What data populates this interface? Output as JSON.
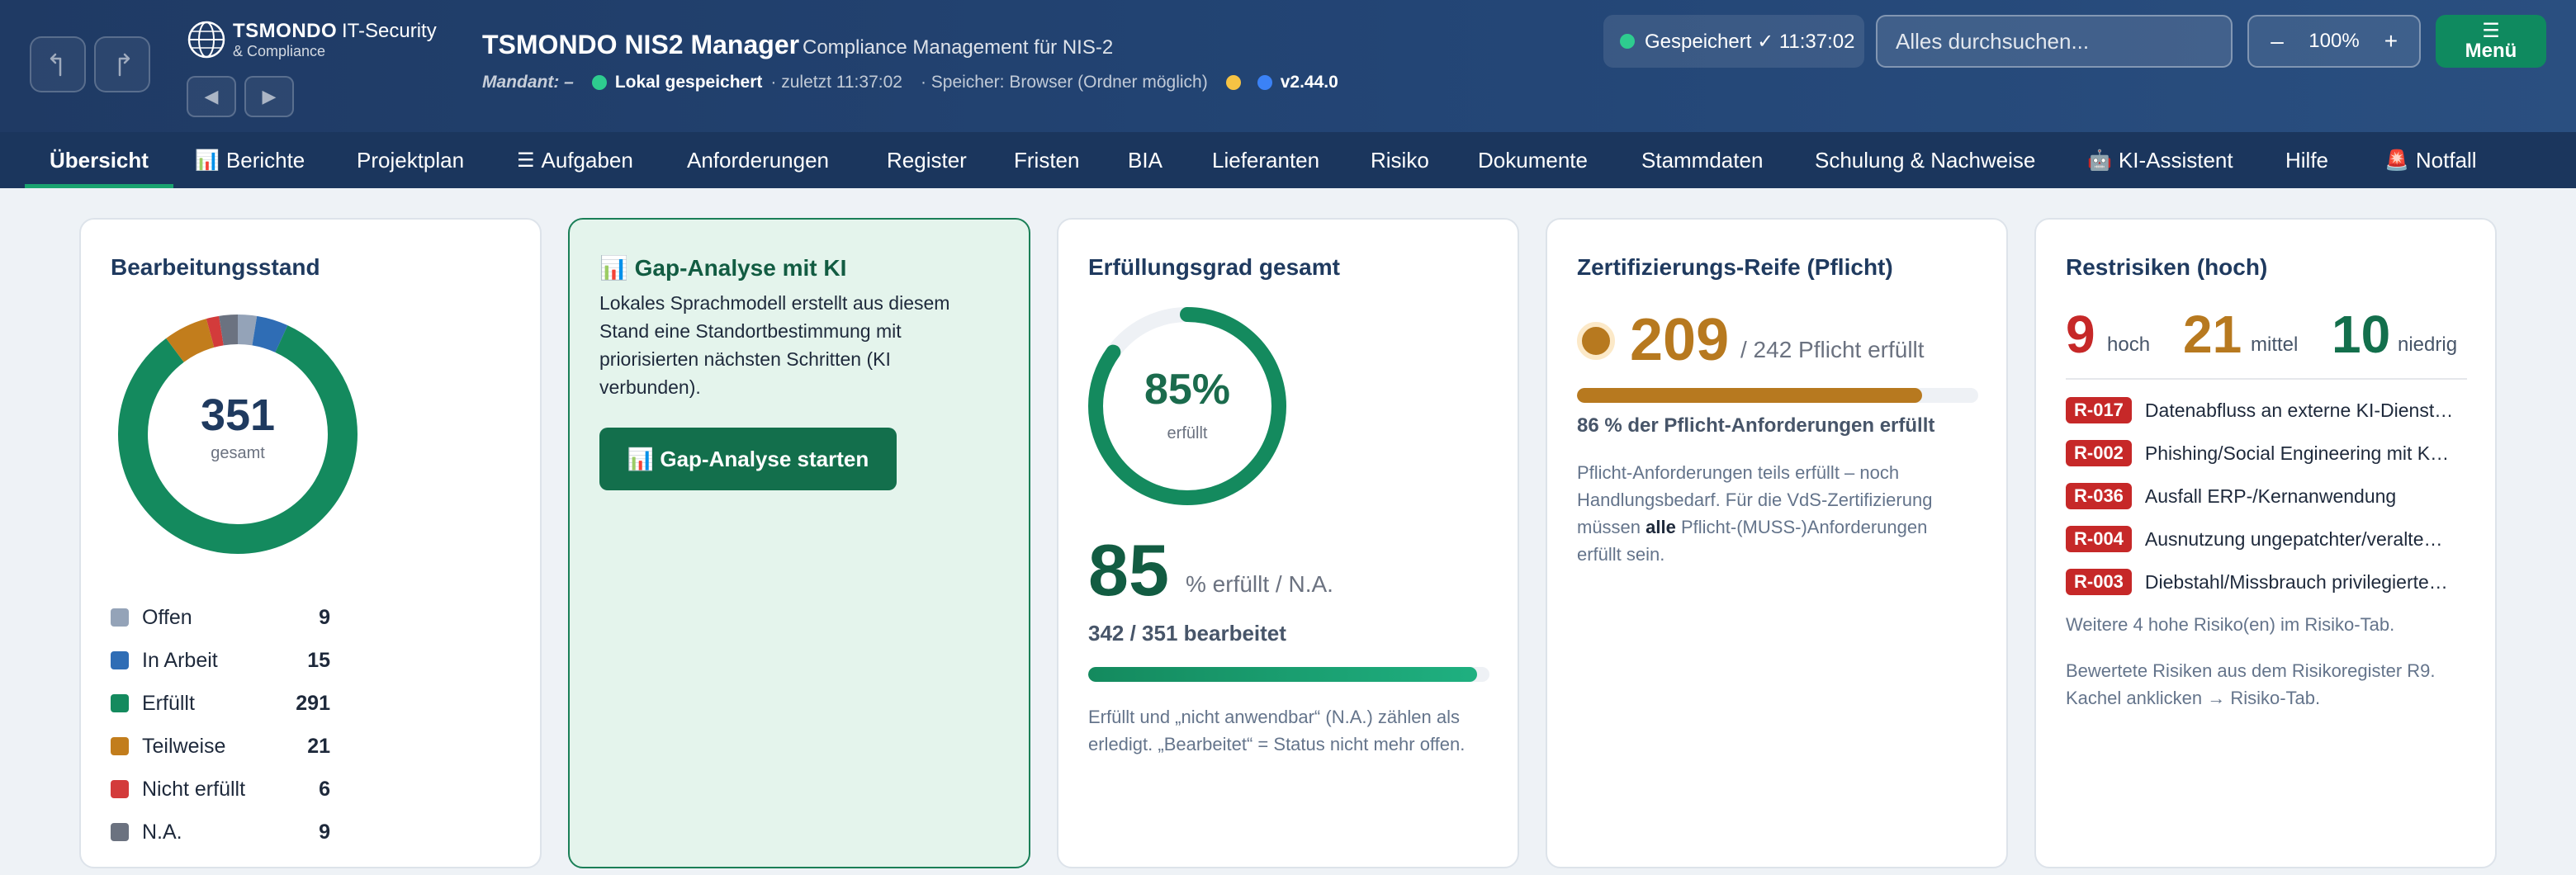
{
  "header": {
    "brand_name": "TSMONDO",
    "brand_suffix": "IT-Security",
    "brand_tagline": "& Compliance",
    "app_title": "TSMONDO NIS2 Manager",
    "app_subtitle": "Compliance Management für NIS-2",
    "mandant": "Mandant: –",
    "local_saved": "Lokal gespeichert",
    "last_saved": "· zuletzt 11:37:02",
    "storage": "· Speicher: Browser (Ordner möglich)",
    "version": "v2.44.0",
    "saved_status": "Gespeichert ✓ 11:37:02",
    "search_placeholder": "Alles durchsuchen...",
    "zoom_minus": "–",
    "zoom_level": "100%",
    "zoom_plus": "+",
    "menu_icon": "☰",
    "menu_label": "Menü",
    "colors": {
      "ok": "#2ecc8f",
      "warn": "#f6c344",
      "info": "#3b82f6",
      "brand": "#1f3a64",
      "accent": "#0f8a5f"
    }
  },
  "tabs": [
    {
      "label": "Übersicht",
      "icon": ""
    },
    {
      "label": "Berichte",
      "icon": "📊"
    },
    {
      "label": "Projektplan",
      "icon": ""
    },
    {
      "label": "Aufgaben",
      "icon": "☰"
    },
    {
      "label": "Anforderungen",
      "icon": ""
    },
    {
      "label": "Register",
      "icon": ""
    },
    {
      "label": "Fristen",
      "icon": ""
    },
    {
      "label": "BIA",
      "icon": ""
    },
    {
      "label": "Lieferanten",
      "icon": ""
    },
    {
      "label": "Risiko",
      "icon": ""
    },
    {
      "label": "Dokumente",
      "icon": ""
    },
    {
      "label": "Stammdaten",
      "icon": ""
    },
    {
      "label": "Schulung & Nachweise",
      "icon": ""
    },
    {
      "label": "KI-Assistent",
      "icon": "🤖"
    },
    {
      "label": "Hilfe",
      "icon": ""
    },
    {
      "label": "Notfall",
      "icon": "🚨"
    }
  ],
  "status_card": {
    "title": "Bearbeitungsstand",
    "total": "351",
    "total_label": "gesamt",
    "legend": [
      {
        "label": "Offen",
        "value": 9,
        "color": "#94a3b8"
      },
      {
        "label": "In Arbeit",
        "value": 15,
        "color": "#2f6db5"
      },
      {
        "label": "Erfüllt",
        "value": 291,
        "color": "#148a5e"
      },
      {
        "label": "Teilweise",
        "value": 21,
        "color": "#c27d1c"
      },
      {
        "label": "Nicht erfüllt",
        "value": 6,
        "color": "#d33b3b"
      },
      {
        "label": "N.A.",
        "value": 9,
        "color": "#6b7280"
      }
    ]
  },
  "gap_card": {
    "title": "📊 Gap-Analyse mit KI",
    "text": "Lokales Sprachmodell erstellt aus diesem Stand eine Standortbestimmung mit priorisierten nächsten Schritten (KI verbunden).",
    "button": "📊 Gap-Analyse starten"
  },
  "fulfillment_card": {
    "title": "Erfüllungsgrad gesamt",
    "ring_percent": 85,
    "ring_value": "85%",
    "ring_label": "erfüllt",
    "big_value": "85",
    "big_sub": "% erfüllt / N.A.",
    "processed": "342 / 351 bearbeitet",
    "progress": 0.97,
    "note": "Erfüllt und „nicht anwendbar“ (N.A.) zählen als erledigt. „Bearbeitet“ = Status nicht mehr offen."
  },
  "cert_card": {
    "title": "Zertifizierungs-Reife (Pflicht)",
    "value": "209",
    "value_sub": "/ 242 Pflicht erfüllt",
    "progress": 0.86,
    "caption": "86 % der Pflicht-Anforderungen erfüllt",
    "note_before": "Pflicht-Anforderungen teils erfüllt – noch Handlungsbedarf. Für die VdS-Zertifizierung müssen",
    "note_bold": "alle",
    "note_after": "Pflicht-(MUSS-)Anforderungen erfüllt sein."
  },
  "risk_card": {
    "title": "Restrisiken (hoch)",
    "counts": [
      {
        "value": "9",
        "label": "hoch",
        "color": "#c62828"
      },
      {
        "value": "21",
        "label": "mittel",
        "color": "#b7791f"
      },
      {
        "value": "10",
        "label": "niedrig",
        "color": "#136f4c"
      }
    ],
    "items": [
      {
        "id": "R-017",
        "text": "Datenabfluss an externe KI-Dienst…"
      },
      {
        "id": "R-002",
        "text": "Phishing/Social Engineering mit K…"
      },
      {
        "id": "R-036",
        "text": "Ausfall ERP-/Kernanwendung"
      },
      {
        "id": "R-004",
        "text": "Ausnutzung ungepatchter/veralte…"
      },
      {
        "id": "R-003",
        "text": "Diebstahl/Missbrauch privilegierte…"
      }
    ],
    "more": "Weitere 4 hohe Risiko(en) im Risiko-Tab.",
    "footer": "Bewertete Risiken aus dem Risikoregister R9. Kachel anklicken → Risiko-Tab."
  }
}
